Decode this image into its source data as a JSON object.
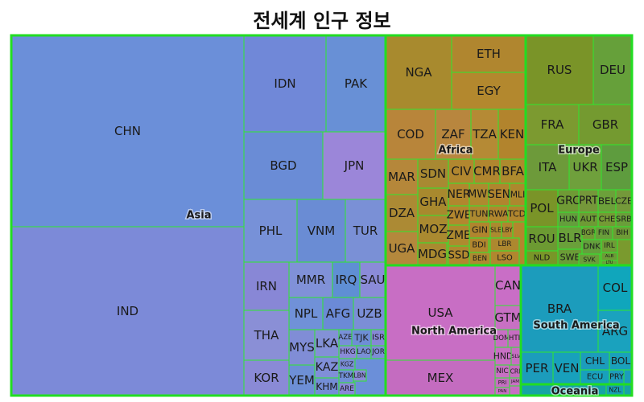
{
  "chart_data": {
    "type": "treemap",
    "title": "전세계 인구 정보",
    "region_label_style": "bold label inside each region block",
    "regions": [
      {
        "name": "Asia",
        "color": "#6b8fd9",
        "items": [
          {
            "name": "CHN",
            "color": "#6b8fd9"
          },
          {
            "name": "IND",
            "color": "#7c8ad8"
          },
          {
            "name": "IDN",
            "color": "#7088d8"
          },
          {
            "name": "PAK",
            "color": "#6890d6"
          },
          {
            "name": "BGD",
            "color": "#6a8cd6"
          },
          {
            "name": "JPN",
            "color": "#9b86d9"
          },
          {
            "name": "PHL",
            "color": "#7791d8"
          },
          {
            "name": "VNM",
            "color": "#6a8cd4"
          },
          {
            "name": "TUR",
            "color": "#7a90d6"
          },
          {
            "name": "IRN",
            "color": "#8887d6"
          },
          {
            "name": "MMR",
            "color": "#8091d8"
          },
          {
            "name": "IRQ",
            "color": "#5f8fd4"
          },
          {
            "name": "SAU",
            "color": "#8b8bd8"
          },
          {
            "name": "THA",
            "color": "#8a8fd6"
          },
          {
            "name": "NPL",
            "color": "#7091d8"
          },
          {
            "name": "AFG",
            "color": "#6b8ad6"
          },
          {
            "name": "UZB",
            "color": "#7b8ed6"
          },
          {
            "name": "KOR",
            "color": "#8a8ad6"
          },
          {
            "name": "MYS",
            "color": "#808dd6"
          },
          {
            "name": "LKA",
            "color": "#8391d6"
          },
          {
            "name": "AZE",
            "color": "#7890d8"
          },
          {
            "name": "TJK",
            "color": "#6e8ed6"
          },
          {
            "name": "ISR",
            "color": "#8688d6"
          },
          {
            "name": "HKG",
            "color": "#8a8bd8"
          },
          {
            "name": "LAO",
            "color": "#7a8fd6"
          },
          {
            "name": "JOR",
            "color": "#7e8cd6"
          },
          {
            "name": "YEM",
            "color": "#6d8fd6"
          },
          {
            "name": "KAZ",
            "color": "#808fd8"
          },
          {
            "name": "KGZ",
            "color": "#7a8dd6"
          },
          {
            "name": "KHM",
            "color": "#748ed6"
          },
          {
            "name": "TKM",
            "color": "#7090d6"
          },
          {
            "name": "LBN",
            "color": "#8a8cd6"
          },
          {
            "name": "ARE",
            "color": "#8a88d8"
          }
        ]
      },
      {
        "name": "Africa",
        "color": "#b3862e",
        "items": [
          {
            "name": "NGA",
            "color": "#a88a2e"
          },
          {
            "name": "ETH",
            "color": "#b0862f"
          },
          {
            "name": "EGY",
            "color": "#b3882e"
          },
          {
            "name": "COD",
            "color": "#b8853a"
          },
          {
            "name": "ZAF",
            "color": "#b8863e"
          },
          {
            "name": "TZA",
            "color": "#b58a35"
          },
          {
            "name": "KEN",
            "color": "#b2842d"
          },
          {
            "name": "MAR",
            "color": "#b5873a"
          },
          {
            "name": "SDN",
            "color": "#a88932"
          },
          {
            "name": "CIV",
            "color": "#b1872f"
          },
          {
            "name": "CMR",
            "color": "#b0862f"
          },
          {
            "name": "BFA",
            "color": "#ad8a2e"
          },
          {
            "name": "DZA",
            "color": "#ac8a34"
          },
          {
            "name": "GHA",
            "color": "#a8892e"
          },
          {
            "name": "NER",
            "color": "#b1872e"
          },
          {
            "name": "MWI",
            "color": "#ae8a2f"
          },
          {
            "name": "SEN",
            "color": "#b0852e"
          },
          {
            "name": "MLI",
            "color": "#ad882e"
          },
          {
            "name": "MOZ",
            "color": "#aa8a30"
          },
          {
            "name": "ZWE",
            "color": "#b3872f"
          },
          {
            "name": "TUN",
            "color": "#ad8a30"
          },
          {
            "name": "RWA",
            "color": "#b1872e"
          },
          {
            "name": "TCD",
            "color": "#b0862e"
          },
          {
            "name": "UGA",
            "color": "#b4883c"
          },
          {
            "name": "ZMB",
            "color": "#ae8a2f"
          },
          {
            "name": "GIN",
            "color": "#b0852e"
          },
          {
            "name": "SLE",
            "color": "#ab8a2f"
          },
          {
            "name": "LBY",
            "color": "#b0862f"
          },
          {
            "name": "MDG",
            "color": "#a98a30"
          },
          {
            "name": "BDI",
            "color": "#b1862e"
          },
          {
            "name": "LBR",
            "color": "#ad882f"
          },
          {
            "name": "SSD",
            "color": "#b0882f"
          },
          {
            "name": "BEN",
            "color": "#ad8a30"
          },
          {
            "name": "LSO",
            "color": "#b0872f"
          }
        ]
      },
      {
        "name": "Europe",
        "color": "#7a9a2e",
        "items": [
          {
            "name": "RUS",
            "color": "#7a9428"
          },
          {
            "name": "DEU",
            "color": "#66a03a"
          },
          {
            "name": "FRA",
            "color": "#7c9a30"
          },
          {
            "name": "GBR",
            "color": "#749a30"
          },
          {
            "name": "ITA",
            "color": "#6d9a3a"
          },
          {
            "name": "UKR",
            "color": "#6fa03c"
          },
          {
            "name": "ESP",
            "color": "#5e9c3e"
          },
          {
            "name": "POL",
            "color": "#7a9428"
          },
          {
            "name": "GRC",
            "color": "#6f9a35"
          },
          {
            "name": "PRT",
            "color": "#75973a"
          },
          {
            "name": "BEL",
            "color": "#6ca03a"
          },
          {
            "name": "CZE",
            "color": "#74993a"
          },
          {
            "name": "HUN",
            "color": "#649e3c"
          },
          {
            "name": "AUT",
            "color": "#6e9a35"
          },
          {
            "name": "CHE",
            "color": "#749a35"
          },
          {
            "name": "SRB",
            "color": "#6a9e3a"
          },
          {
            "name": "ROU",
            "color": "#6c9a32"
          },
          {
            "name": "BLR",
            "color": "#6aa03a"
          },
          {
            "name": "BGR",
            "color": "#729a36"
          },
          {
            "name": "FIN",
            "color": "#699e3a"
          },
          {
            "name": "BIH",
            "color": "#6e9a36"
          },
          {
            "name": "DNK",
            "color": "#64a03c"
          },
          {
            "name": "IRL",
            "color": "#6e9c36"
          },
          {
            "name": "NLD",
            "color": "#789628"
          },
          {
            "name": "SWE",
            "color": "#6a9c36"
          },
          {
            "name": "SVK",
            "color": "#6a9e3a"
          },
          {
            "name": "ALB",
            "color": "#6c9c36"
          },
          {
            "name": "LTU",
            "color": "#6aa03a"
          }
        ]
      },
      {
        "name": "North America",
        "color": "#c86ec4",
        "items": [
          {
            "name": "USA",
            "color": "#c86ec4"
          },
          {
            "name": "MEX",
            "color": "#c46cc0"
          },
          {
            "name": "CAN",
            "color": "#c96ec6"
          },
          {
            "name": "GTM",
            "color": "#c870c4"
          },
          {
            "name": "DOM",
            "color": "#c86ec4"
          },
          {
            "name": "HTI",
            "color": "#c66cc2"
          },
          {
            "name": "HND",
            "color": "#c870c4"
          },
          {
            "name": "SLV",
            "color": "#c66ec2"
          },
          {
            "name": "NIC",
            "color": "#c870c4"
          },
          {
            "name": "CRI",
            "color": "#c66cc2"
          },
          {
            "name": "JAM",
            "color": "#c870c4"
          },
          {
            "name": "PRI",
            "color": "#c66ec2"
          },
          {
            "name": "PAN",
            "color": "#c870c4"
          }
        ]
      },
      {
        "name": "South America",
        "color": "#1c9cbc",
        "items": [
          {
            "name": "BRA",
            "color": "#1c9cbc"
          },
          {
            "name": "COL",
            "color": "#10a6bc"
          },
          {
            "name": "ARG",
            "color": "#1aa2be"
          },
          {
            "name": "PER",
            "color": "#1c9cbc"
          },
          {
            "name": "VEN",
            "color": "#18a0bc"
          },
          {
            "name": "CHL",
            "color": "#1c9cbc"
          },
          {
            "name": "BOL",
            "color": "#1aa0bc"
          },
          {
            "name": "ECU",
            "color": "#18a0bc"
          },
          {
            "name": "PRY",
            "color": "#1c9cbc"
          }
        ]
      },
      {
        "name": "Oceania",
        "color": "#16a4a4",
        "items": [
          {
            "name": "NZL",
            "color": "#18a0b0"
          }
        ]
      }
    ]
  }
}
